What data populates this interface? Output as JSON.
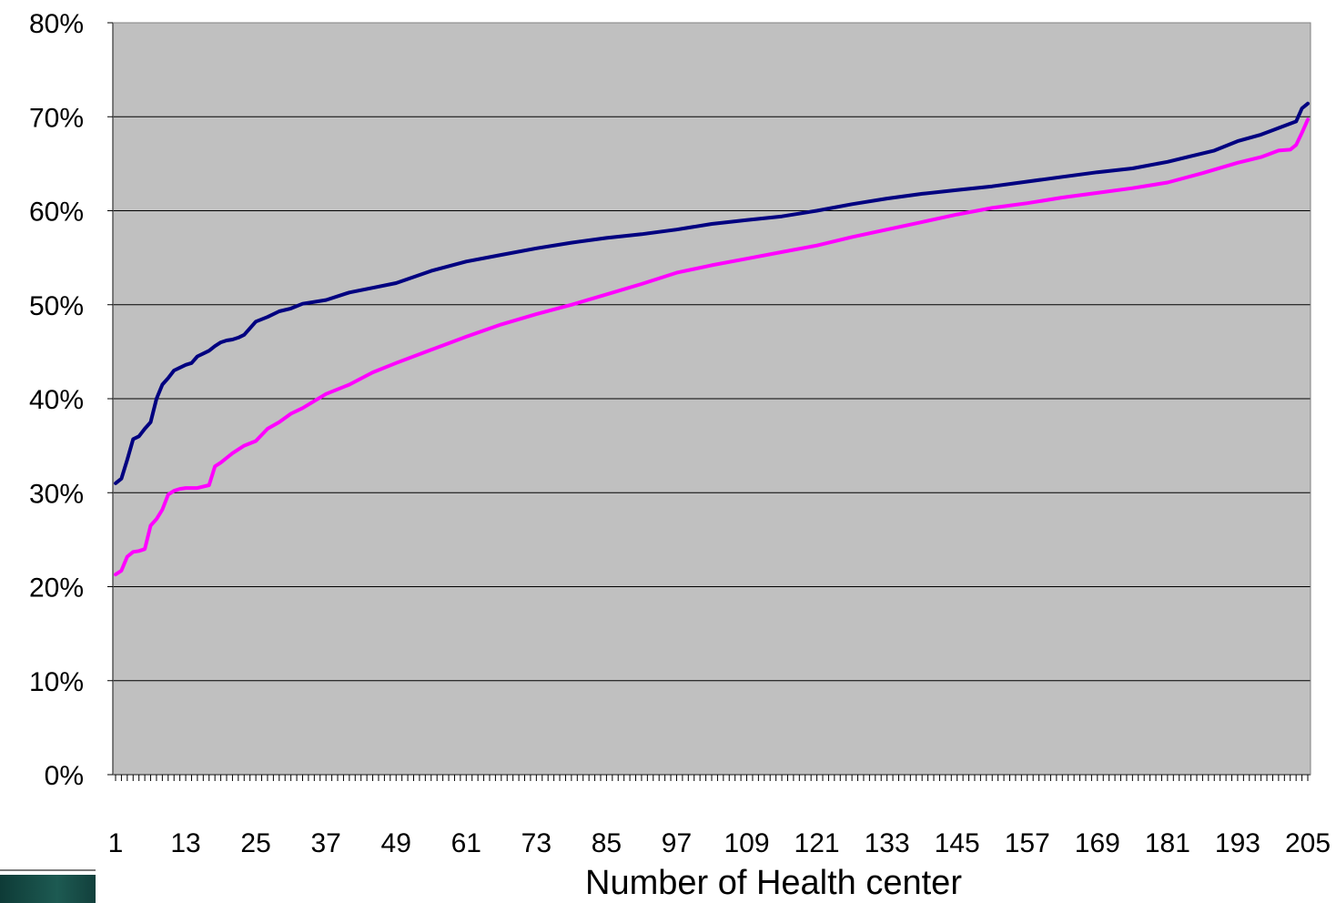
{
  "chart_data": {
    "type": "line",
    "title": "",
    "xlabel": "Number of Health center",
    "ylabel": "",
    "x_ticks": [
      "1",
      "13",
      "25",
      "37",
      "49",
      "61",
      "73",
      "85",
      "97",
      "109",
      "121",
      "133",
      "145",
      "157",
      "169",
      "181",
      "193",
      "205"
    ],
    "y_ticks": [
      "0%",
      "10%",
      "20%",
      "30%",
      "40%",
      "50%",
      "60%",
      "70%",
      "80%"
    ],
    "ylim": [
      0,
      0.8
    ],
    "xlim": [
      1,
      205
    ],
    "grid": "horizontal",
    "background": "#c0c0c0",
    "series": [
      {
        "color": "#000080",
        "x": [
          1,
          2,
          3,
          4,
          5,
          6,
          7,
          8,
          9,
          10,
          11,
          12,
          13,
          14,
          15,
          16,
          17,
          18,
          19,
          20,
          21,
          22,
          23,
          25,
          27,
          29,
          31,
          33,
          37,
          41,
          45,
          49,
          55,
          61,
          67,
          73,
          79,
          85,
          91,
          97,
          103,
          109,
          115,
          121,
          127,
          133,
          139,
          145,
          151,
          157,
          163,
          169,
          175,
          181,
          185,
          189,
          193,
          197,
          200,
          203,
          204,
          205
        ],
        "values": [
          0.31,
          0.315,
          0.335,
          0.357,
          0.36,
          0.368,
          0.375,
          0.4,
          0.415,
          0.422,
          0.43,
          0.433,
          0.436,
          0.438,
          0.445,
          0.448,
          0.451,
          0.456,
          0.46,
          0.462,
          0.463,
          0.465,
          0.468,
          0.482,
          0.487,
          0.493,
          0.496,
          0.501,
          0.505,
          0.513,
          0.518,
          0.523,
          0.536,
          0.546,
          0.553,
          0.56,
          0.566,
          0.571,
          0.575,
          0.58,
          0.586,
          0.59,
          0.594,
          0.6,
          0.607,
          0.613,
          0.618,
          0.622,
          0.626,
          0.631,
          0.636,
          0.641,
          0.645,
          0.652,
          0.658,
          0.664,
          0.674,
          0.681,
          0.688,
          0.695,
          0.709,
          0.714
        ]
      },
      {
        "color": "#ff00ff",
        "x": [
          1,
          2,
          3,
          4,
          5,
          6,
          7,
          8,
          9,
          10,
          11,
          12,
          13,
          15,
          17,
          18,
          19,
          21,
          23,
          25,
          27,
          29,
          31,
          33,
          37,
          41,
          45,
          49,
          55,
          61,
          67,
          73,
          79,
          85,
          91,
          97,
          103,
          109,
          115,
          121,
          127,
          133,
          139,
          145,
          151,
          157,
          163,
          169,
          175,
          181,
          187,
          193,
          197,
          200,
          202,
          203,
          204,
          205
        ],
        "values": [
          0.213,
          0.217,
          0.232,
          0.237,
          0.238,
          0.24,
          0.265,
          0.272,
          0.282,
          0.298,
          0.302,
          0.304,
          0.305,
          0.305,
          0.308,
          0.328,
          0.332,
          0.342,
          0.35,
          0.355,
          0.368,
          0.375,
          0.384,
          0.39,
          0.405,
          0.415,
          0.428,
          0.438,
          0.452,
          0.466,
          0.479,
          0.49,
          0.5,
          0.511,
          0.522,
          0.534,
          0.542,
          0.549,
          0.556,
          0.563,
          0.572,
          0.58,
          0.588,
          0.596,
          0.603,
          0.608,
          0.614,
          0.619,
          0.624,
          0.63,
          0.64,
          0.651,
          0.657,
          0.664,
          0.665,
          0.67,
          0.683,
          0.697
        ]
      }
    ]
  }
}
